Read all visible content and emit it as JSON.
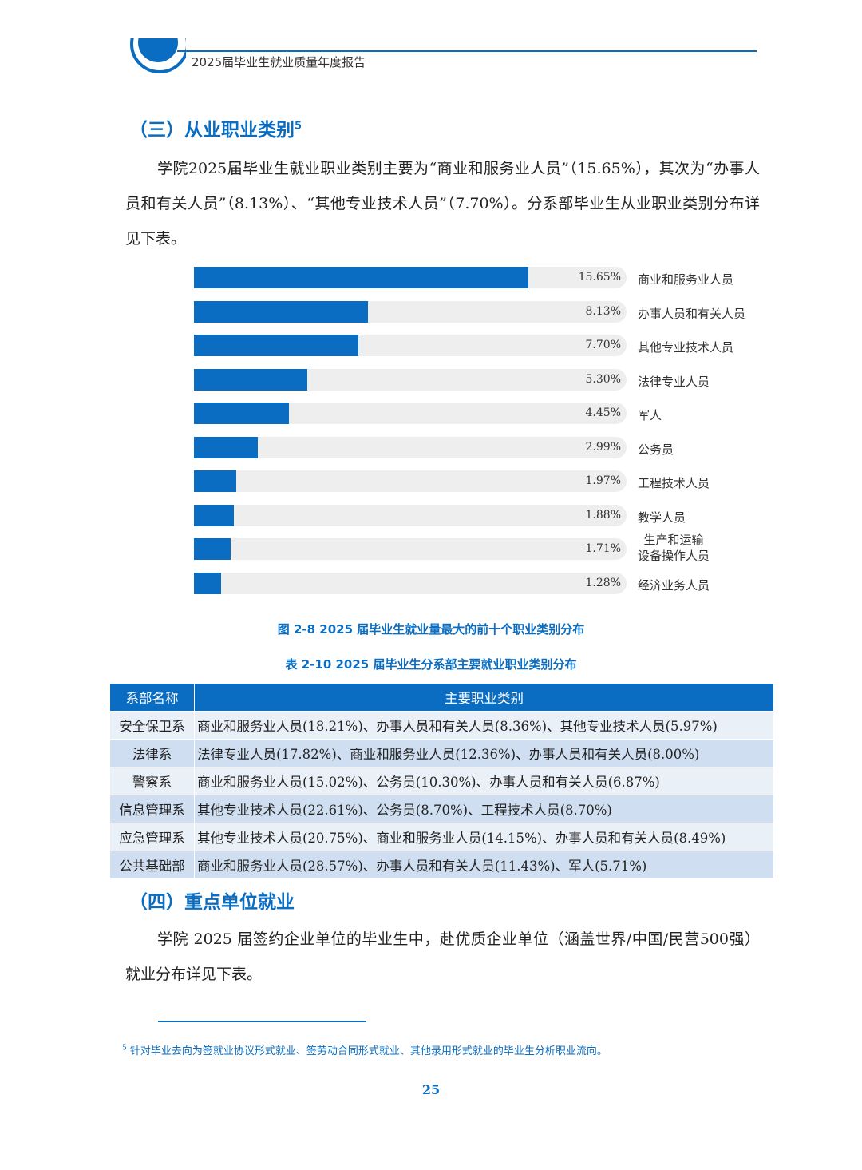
{
  "header": {
    "title": "2025届毕业生就业质量年度报告"
  },
  "section3": {
    "title": "（三）从业职业类别",
    "footnote_mark": "5",
    "paragraph": "学院2025届毕业生就业职业类别主要为“商业和服务业人员”（15.65%），其次为“办事人员和有关人员”（8.13%）、“其他专业技术人员”（7.70%）。分系部毕业生从业职业类别分布详见下表。"
  },
  "chart_data": {
    "type": "bar",
    "orientation": "horizontal",
    "xlim": [
      0,
      20.25
    ],
    "bar_color": "#0a6dc2",
    "categories": [
      "商业和服务业人员",
      "办事人员和有关人员",
      "其他专业技术人员",
      "法律专业人员",
      "军人",
      "公务员",
      "工程技术人员",
      "教学人员",
      "生产和运输设备操作人员",
      "经济业务人员"
    ],
    "category_lines": [
      [
        "商业和服务业人员"
      ],
      [
        "办事人员和有关人员"
      ],
      [
        "其他专业技术人员"
      ],
      [
        "法律专业人员"
      ],
      [
        "军人"
      ],
      [
        "公务员"
      ],
      [
        "工程技术人员"
      ],
      [
        "教学人员"
      ],
      [
        "生产和运输",
        "设备操作人员"
      ],
      [
        "经济业务人员"
      ]
    ],
    "values": [
      15.65,
      8.13,
      7.7,
      5.3,
      4.45,
      2.99,
      1.97,
      1.88,
      1.71,
      1.28
    ],
    "value_labels": [
      "15.65%",
      "8.13%",
      "7.70%",
      "5.30%",
      "4.45%",
      "2.99%",
      "1.97%",
      "1.88%",
      "1.71%",
      "1.28%"
    ]
  },
  "figure_caption": "图 2-8  2025 届毕业生就业量最大的前十个职业类别分布",
  "table_caption": "表 2-10  2025 届毕业生分系部主要就业职业类别分布",
  "table": {
    "headers": [
      "系部名称",
      "主要职业类别"
    ],
    "rows": [
      {
        "dept": "安全保卫系",
        "occupations": "商业和服务业人员(18.21%)、办事人员和有关人员(8.36%)、其他专业技术人员(5.97%)"
      },
      {
        "dept": "法律系",
        "occupations": "法律专业人员(17.82%)、商业和服务业人员(12.36%)、办事人员和有关人员(8.00%)"
      },
      {
        "dept": "警察系",
        "occupations": "商业和服务业人员(15.02%)、公务员(10.30%)、办事人员和有关人员(6.87%)"
      },
      {
        "dept": "信息管理系",
        "occupations": "其他专业技术人员(22.61%)、公务员(8.70%)、工程技术人员(8.70%)"
      },
      {
        "dept": "应急管理系",
        "occupations": "其他专业技术人员(20.75%)、商业和服务业人员(14.15%)、办事人员和有关人员(8.49%)"
      },
      {
        "dept": "公共基础部",
        "occupations": "商业和服务业人员(28.57%)、办事人员和有关人员(11.43%)、军人(5.71%)"
      }
    ]
  },
  "section4": {
    "title": "（四）重点单位就业",
    "paragraph": "学院 2025 届签约企业单位的毕业生中，赴优质企业单位（涵盖世界/中国/民营500强）就业分布详见下表。"
  },
  "footnote": {
    "mark": "5",
    "text": "针对毕业去向为签就业协议形式就业、签劳动合同形式就业、其他录用形式就业的毕业生分析职业流向。"
  },
  "page_number": "25"
}
